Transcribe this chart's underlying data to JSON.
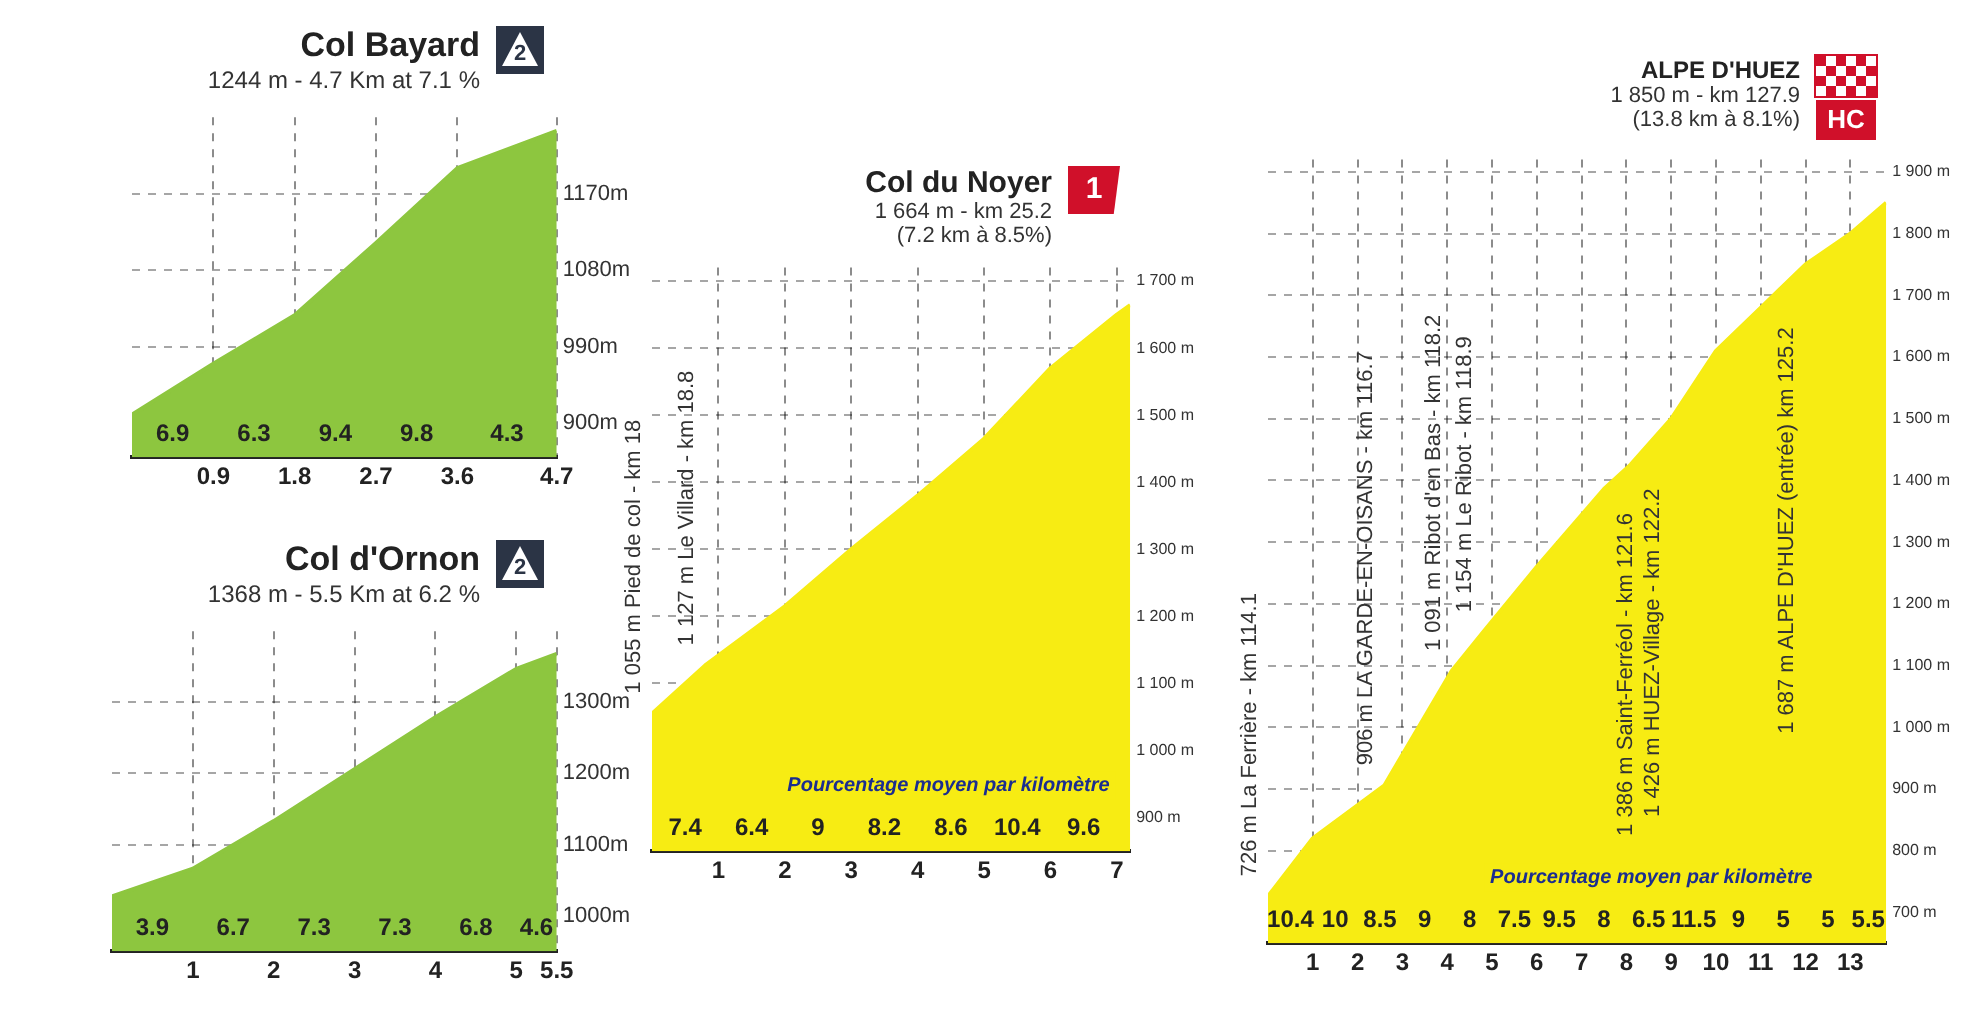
{
  "chart_data": [
    {
      "type": "area",
      "title": "Col Bayard",
      "subtitle": "1244 m - 4.7 Km at 7.1 %",
      "x": [
        0,
        0.9,
        1.8,
        2.7,
        3.6,
        4.7
      ],
      "values": [
        910,
        970,
        1027,
        1112,
        1200,
        1244
      ],
      "color": "#8dc63f",
      "xlim": [
        0,
        4.7
      ],
      "xticks": [
        0.9,
        1.8,
        2.7,
        3.6,
        4.7
      ],
      "ylim": [
        860,
        1260
      ],
      "yticks": [
        {
          "value": 900,
          "label": "900m"
        },
        {
          "value": 990,
          "label": "990m"
        },
        {
          "value": 1080,
          "label": "1080m"
        },
        {
          "value": 1170,
          "label": "1170m"
        }
      ],
      "grid": true,
      "annotations": [
        "2",
        "6.9",
        "6.3",
        "9.4",
        "9.8",
        "4.3"
      ]
    },
    {
      "type": "area",
      "title": "Col d'Ornon",
      "subtitle": "1368 m - 5.5 Km at 6.2 %",
      "x": [
        0,
        1,
        2,
        3,
        4,
        5,
        5.5
      ],
      "values": [
        1027,
        1066,
        1133,
        1206,
        1279,
        1347,
        1368
      ],
      "color": "#8dc63f",
      "xlim": [
        0,
        5.5
      ],
      "xticks": [
        1,
        2,
        3,
        4,
        5,
        5.5
      ],
      "ylim": [
        950,
        1400
      ],
      "yticks": [
        {
          "value": 1000,
          "label": "1000m"
        },
        {
          "value": 1100,
          "label": "1100m"
        },
        {
          "value": 1200,
          "label": "1200m"
        },
        {
          "value": 1300,
          "label": "1300m"
        }
      ],
      "grid": true,
      "annotations": [
        "2",
        "3.9",
        "6.7",
        "7.3",
        "7.3",
        "6.8",
        "4.6"
      ]
    },
    {
      "type": "area",
      "title": "Col du Noyer",
      "subtitle": "1 664 m - km 25.2\n(7.2 km à 8.5%)",
      "x": [
        0,
        0.8,
        2,
        3,
        4,
        5,
        6,
        7,
        7.2
      ],
      "values": [
        1055,
        1127,
        1215,
        1300,
        1380,
        1465,
        1570,
        1650,
        1664
      ],
      "color": "#f7ec13",
      "xlim": [
        0,
        7.2
      ],
      "xticks": [
        1,
        2,
        3,
        4,
        5,
        6,
        7
      ],
      "ylim": [
        850,
        1720
      ],
      "yticks": [
        {
          "value": 900,
          "label": "900 m"
        },
        {
          "value": 1000,
          "label": "1 000 m"
        },
        {
          "value": 1100,
          "label": "1 100 m"
        },
        {
          "value": 1200,
          "label": "1 200 m"
        },
        {
          "value": 1300,
          "label": "1 300 m"
        },
        {
          "value": 1400,
          "label": "1 400 m"
        },
        {
          "value": 1500,
          "label": "1 500 m"
        },
        {
          "value": 1600,
          "label": "1 600 m"
        },
        {
          "value": 1700,
          "label": "1 700 m"
        }
      ],
      "grid": true,
      "annotations": [
        "1",
        "Pourcentage moyen par kilomètre",
        {
          "text": "1 055 m Pied de col - km 18",
          "x": 0,
          "y": 1055
        },
        {
          "text": "1 127 m Le Villard - km 18.8",
          "x": 0.8,
          "y": 1127
        },
        "7.4",
        "6.4",
        "9",
        "8.2",
        "8.6",
        "10.4",
        "9.6"
      ]
    },
    {
      "type": "area",
      "title": "ALPE D'HUEZ",
      "subtitle": "1 850 m - km 127.9\n(13.8 km à 8.1%)",
      "x": [
        0,
        1,
        2.6,
        4.1,
        4.8,
        6,
        7.5,
        8.1,
        9,
        10,
        11.1,
        12,
        13,
        13.8
      ],
      "values": [
        726,
        820,
        906,
        1091,
        1154,
        1260,
        1386,
        1426,
        1500,
        1610,
        1687,
        1750,
        1800,
        1850
      ],
      "color": "#f7ec13",
      "xlim": [
        0,
        13.8
      ],
      "xticks": [
        1,
        2,
        3,
        4,
        5,
        6,
        7,
        8,
        9,
        10,
        11,
        12,
        13
      ],
      "ylim": [
        650,
        1920
      ],
      "yticks": [
        {
          "value": 700,
          "label": "700 m"
        },
        {
          "value": 800,
          "label": "800 m"
        },
        {
          "value": 900,
          "label": "900 m"
        },
        {
          "value": 1000,
          "label": "1 000 m"
        },
        {
          "value": 1100,
          "label": "1 100 m"
        },
        {
          "value": 1200,
          "label": "1 200 m"
        },
        {
          "value": 1300,
          "label": "1 300 m"
        },
        {
          "value": 1400,
          "label": "1 400 m"
        },
        {
          "value": 1500,
          "label": "1 500 m"
        },
        {
          "value": 1600,
          "label": "1 600 m"
        },
        {
          "value": 1700,
          "label": "1 700 m"
        },
        {
          "value": 1800,
          "label": "1 800 m"
        },
        {
          "value": 1900,
          "label": "1 900 m"
        }
      ],
      "grid": true,
      "annotations": [
        "HC",
        "Pourcentage moyen par kilomètre",
        {
          "text": "726 m La Ferrière - km 114.1",
          "x": 0,
          "y": 726
        },
        {
          "text": "906 m LA GARDE-EN-OISANS - km 116.7",
          "x": 2.6,
          "y": 906
        },
        {
          "text": "1 091 m Ribot d'en Bas - km 118.2",
          "x": 4.1,
          "y": 1091
        },
        {
          "text": "1 154 m Le Ribot - km 118.9",
          "x": 4.8,
          "y": 1154
        },
        {
          "text": "1 386 m Saint-Ferréol - km 121.6",
          "x": 7.5,
          "y": 1386
        },
        {
          "text": "1 426 m HUEZ-Village - km 122.2",
          "x": 8.1,
          "y": 1426
        },
        {
          "text": "1 687 m ALPE D'HUEZ (entrée) km 125.2",
          "x": 11.1,
          "y": 1687
        },
        "10.4",
        "10",
        "8.5",
        "9",
        "8",
        "7.5",
        "9.5",
        "8",
        "6.5",
        "11.5",
        "9",
        "5",
        "5",
        "5.5"
      ]
    }
  ]
}
